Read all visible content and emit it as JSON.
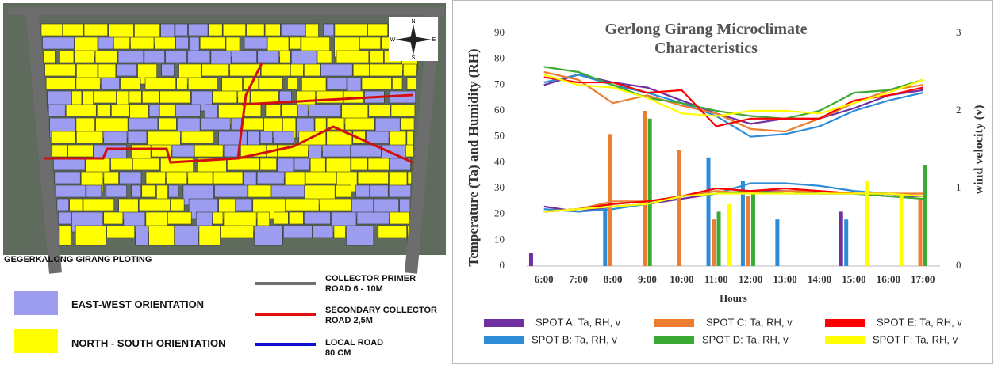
{
  "map": {
    "caption": "GEGERKALONG GIRANG PLOTING",
    "compass": [
      "N",
      "E",
      "S",
      "W"
    ],
    "legend": [
      {
        "label": "EAST-WEST ORIENTATION",
        "color": "#9c9cf0"
      },
      {
        "label": "NORTH - SOUTH ORIENTATION",
        "color": "#ffff00"
      }
    ],
    "roads": [
      {
        "label": "COLLECTOR PRIMER\nROAD 6 - 10M",
        "color": "#707070"
      },
      {
        "label": "SECONDARY COLLECTOR\nROAD 2,5M",
        "color": "#e01010"
      },
      {
        "label": "LOCAL ROAD\n80 CM",
        "color": "#1010d0"
      }
    ]
  },
  "chart_data": {
    "type": "combo",
    "title": "Gerlong Girang Microclimate Characteristics",
    "x_label": "Hours",
    "y_label": "Temperature (Ta)  and Humidity (RH)",
    "y2_label": "wind velocity (v)",
    "categories": [
      "6:00",
      "7:00",
      "8:00",
      "9:00",
      "10:00",
      "11:00",
      "12:00",
      "13:00",
      "14:00",
      "15:00",
      "16:00",
      "17:00"
    ],
    "ylim": [
      0,
      90
    ],
    "yticks": [
      0,
      10,
      20,
      30,
      40,
      50,
      60,
      70,
      80,
      90
    ],
    "y2lim": [
      0,
      3
    ],
    "y2ticks": [
      0,
      1,
      2,
      3
    ],
    "series": [
      {
        "name": "SPOT A: Ta, RH, v",
        "color": "#7030a0",
        "rh": [
          70,
          74,
          71,
          69,
          64,
          59,
          55,
          57,
          57,
          61,
          66,
          68
        ],
        "ta": [
          23,
          21,
          23,
          24,
          26,
          28,
          29,
          29,
          28,
          28,
          27,
          27
        ],
        "v": [
          0.17,
          null,
          null,
          null,
          null,
          null,
          null,
          null,
          null,
          0.7,
          null,
          null
        ]
      },
      {
        "name": "SPOT B: Ta, RH, v",
        "color": "#2e8bd6",
        "rh": [
          71,
          74,
          70,
          67,
          63,
          58,
          50,
          51,
          54,
          60,
          64,
          67
        ],
        "ta": [
          22,
          21,
          22,
          24,
          27,
          28,
          32,
          32,
          31,
          29,
          28,
          27
        ],
        "v": [
          null,
          null,
          0.77,
          null,
          null,
          1.4,
          1.1,
          0.6,
          null,
          0.6,
          null,
          null
        ]
      },
      {
        "name": "SPOT C: Ta, RH, v",
        "color": "#ed7d31",
        "rh": [
          75,
          72,
          63,
          66,
          62,
          59,
          53,
          52,
          57,
          63,
          68,
          70
        ],
        "ta": [
          21,
          22,
          25,
          25,
          27,
          29,
          28,
          29,
          29,
          28,
          28,
          28
        ],
        "v": [
          null,
          null,
          1.7,
          2.0,
          1.5,
          0.6,
          0.9,
          null,
          null,
          null,
          null,
          0.87
        ]
      },
      {
        "name": "SPOT D: Ta, RH, v",
        "color": "#3aaa35",
        "rh": [
          77,
          75,
          70,
          65,
          63,
          60,
          58,
          57,
          60,
          67,
          68,
          72
        ],
        "ta": [
          21,
          22,
          24,
          25,
          27,
          28,
          29,
          28,
          28,
          28,
          27,
          26
        ],
        "v": [
          null,
          null,
          null,
          1.9,
          null,
          0.7,
          0.93,
          null,
          null,
          null,
          null,
          1.3
        ]
      },
      {
        "name": "SPOT E: Ta, RH, v",
        "color": "#ff0000",
        "rh": [
          73,
          71,
          71,
          67,
          68,
          54,
          57,
          57,
          57,
          64,
          66,
          69
        ],
        "ta": [
          21,
          22,
          24,
          25,
          27,
          30,
          29,
          30,
          29,
          28,
          28,
          27
        ],
        "v": [
          null,
          null,
          null,
          null,
          null,
          null,
          null,
          null,
          null,
          null,
          null,
          null
        ]
      },
      {
        "name": "SPOT F: Ta, RH, v",
        "color": "#ffff00",
        "rh": [
          74,
          70,
          69,
          65,
          59,
          58,
          60,
          60,
          59,
          63,
          67,
          72
        ],
        "ta": [
          21,
          22,
          23,
          24,
          27,
          28,
          28,
          28,
          28,
          28,
          28,
          27
        ],
        "v": [
          null,
          null,
          null,
          null,
          null,
          0.8,
          null,
          null,
          null,
          1.1,
          0.9,
          null
        ]
      }
    ]
  }
}
